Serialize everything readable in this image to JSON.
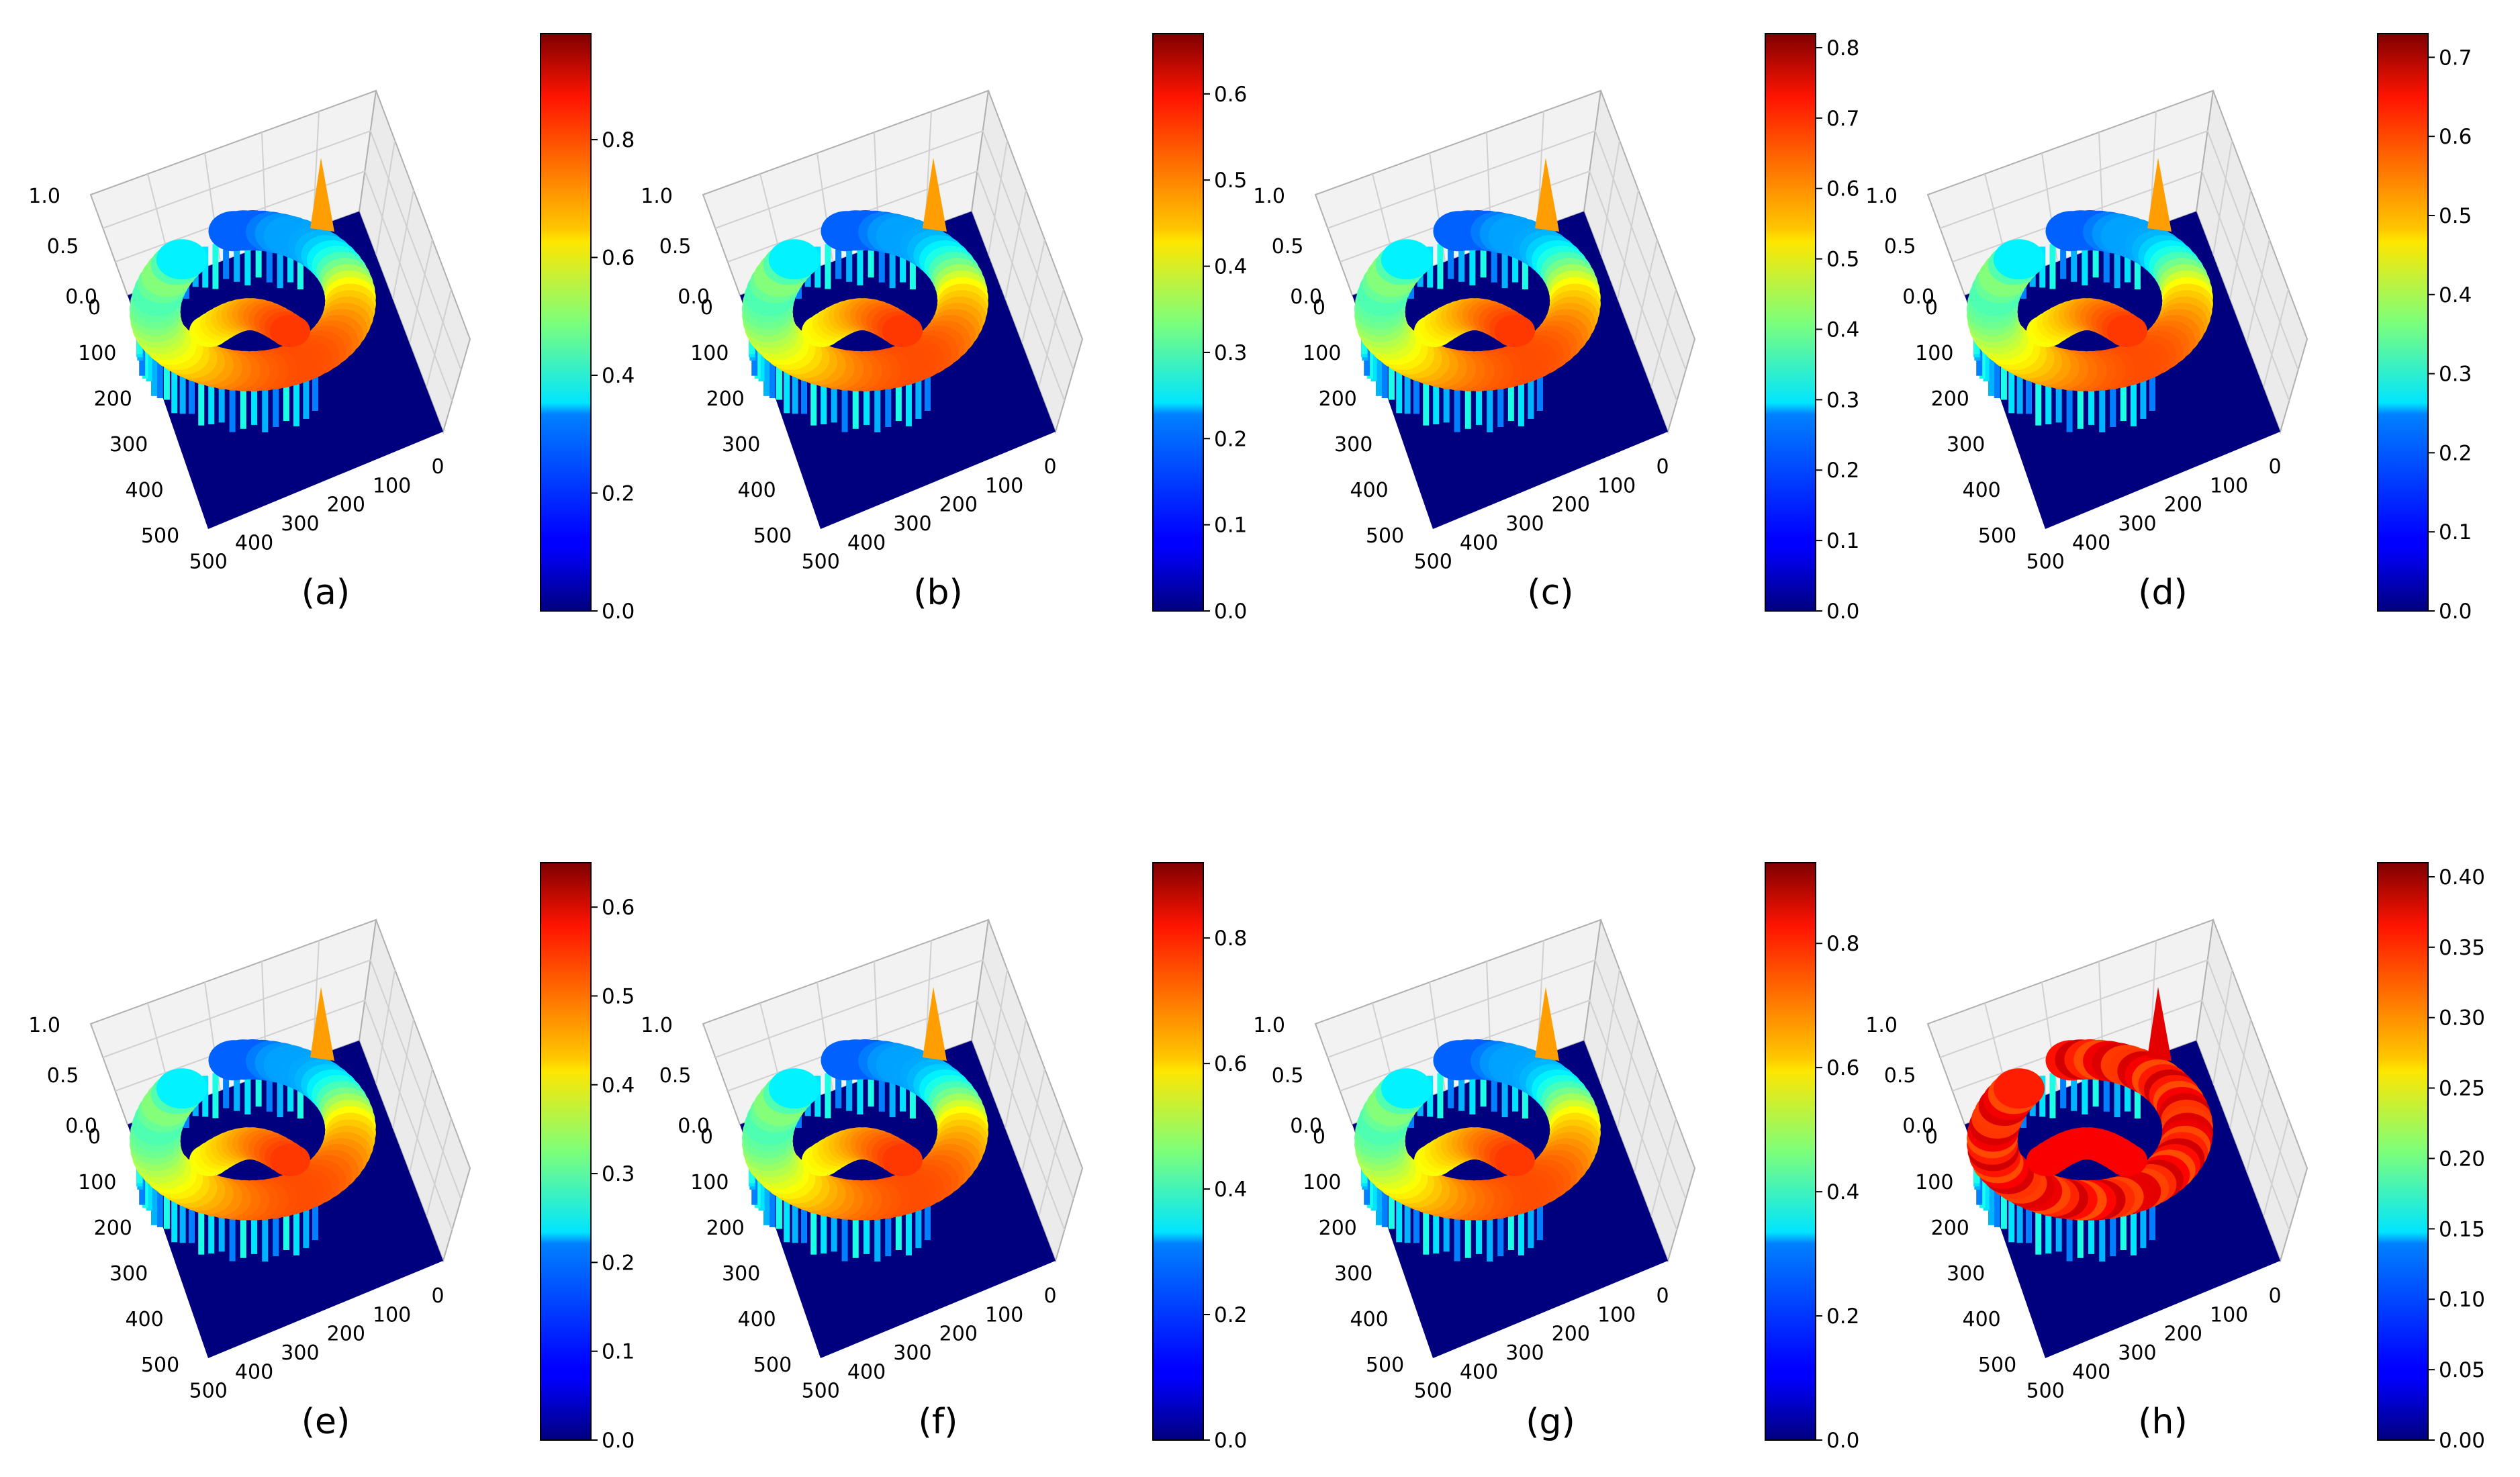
{
  "figure": {
    "background": "#ffffff",
    "axis_color": "#b0b0b0",
    "base_color": "#00007f",
    "colormap": "jet"
  },
  "chart_data": [
    {
      "type": "heatmap",
      "surface": "3d",
      "label": "(a)",
      "zlim": [
        0,
        1
      ],
      "z_ticks": [
        "0.0",
        "0.5",
        "1.0"
      ],
      "x_ticks": [
        "0",
        "100",
        "200",
        "300",
        "400",
        "500"
      ],
      "y_ticks": [
        "0",
        "100",
        "200",
        "300",
        "400",
        "500"
      ],
      "colorbar": {
        "vmin": 0.0,
        "vmax": 0.98,
        "ticks": [
          "0.0",
          "0.2",
          "0.4",
          "0.6",
          "0.8"
        ]
      },
      "style": "normal"
    },
    {
      "type": "heatmap",
      "surface": "3d",
      "label": "(b)",
      "zlim": [
        0,
        1
      ],
      "z_ticks": [
        "0.0",
        "0.5",
        "1.0"
      ],
      "x_ticks": [
        "0",
        "100",
        "200",
        "300",
        "400",
        "500"
      ],
      "y_ticks": [
        "0",
        "100",
        "200",
        "300",
        "400",
        "500"
      ],
      "colorbar": {
        "vmin": 0.0,
        "vmax": 0.67,
        "ticks": [
          "0.0",
          "0.1",
          "0.2",
          "0.3",
          "0.4",
          "0.5",
          "0.6"
        ]
      },
      "style": "normal"
    },
    {
      "type": "heatmap",
      "surface": "3d",
      "label": "(c)",
      "zlim": [
        0,
        1
      ],
      "z_ticks": [
        "0.0",
        "0.5",
        "1.0"
      ],
      "x_ticks": [
        "0",
        "100",
        "200",
        "300",
        "400",
        "500"
      ],
      "y_ticks": [
        "0",
        "100",
        "200",
        "300",
        "400",
        "500"
      ],
      "colorbar": {
        "vmin": 0.0,
        "vmax": 0.82,
        "ticks": [
          "0.0",
          "0.1",
          "0.2",
          "0.3",
          "0.4",
          "0.5",
          "0.6",
          "0.7",
          "0.8"
        ]
      },
      "style": "normal"
    },
    {
      "type": "heatmap",
      "surface": "3d",
      "label": "(d)",
      "zlim": [
        0,
        1
      ],
      "z_ticks": [
        "0.0",
        "0.5",
        "1.0"
      ],
      "x_ticks": [
        "0",
        "100",
        "200",
        "300",
        "400",
        "500"
      ],
      "y_ticks": [
        "0",
        "100",
        "200",
        "300",
        "400",
        "500"
      ],
      "colorbar": {
        "vmin": 0.0,
        "vmax": 0.73,
        "ticks": [
          "0.0",
          "0.1",
          "0.2",
          "0.3",
          "0.4",
          "0.5",
          "0.6",
          "0.7"
        ]
      },
      "style": "normal"
    },
    {
      "type": "heatmap",
      "surface": "3d",
      "label": "(e)",
      "zlim": [
        0,
        1
      ],
      "z_ticks": [
        "0.0",
        "0.5",
        "1.0"
      ],
      "x_ticks": [
        "0",
        "100",
        "200",
        "300",
        "400",
        "500"
      ],
      "y_ticks": [
        "0",
        "100",
        "200",
        "300",
        "400",
        "500"
      ],
      "colorbar": {
        "vmin": 0.0,
        "vmax": 0.65,
        "ticks": [
          "0.0",
          "0.1",
          "0.2",
          "0.3",
          "0.4",
          "0.5",
          "0.6"
        ]
      },
      "style": "normal"
    },
    {
      "type": "heatmap",
      "surface": "3d",
      "label": "(f)",
      "zlim": [
        0,
        1
      ],
      "z_ticks": [
        "0.0",
        "0.5",
        "1.0"
      ],
      "x_ticks": [
        "0",
        "100",
        "200",
        "300",
        "400",
        "500"
      ],
      "y_ticks": [
        "0",
        "100",
        "200",
        "300",
        "400",
        "500"
      ],
      "colorbar": {
        "vmin": 0.0,
        "vmax": 0.92,
        "ticks": [
          "0.0",
          "0.2",
          "0.4",
          "0.6",
          "0.8"
        ]
      },
      "style": "normal"
    },
    {
      "type": "heatmap",
      "surface": "3d",
      "label": "(g)",
      "zlim": [
        0,
        1
      ],
      "z_ticks": [
        "0.0",
        "0.5",
        "1.0"
      ],
      "x_ticks": [
        "0",
        "100",
        "200",
        "300",
        "400",
        "500"
      ],
      "y_ticks": [
        "0",
        "100",
        "200",
        "300",
        "400",
        "500"
      ],
      "colorbar": {
        "vmin": 0.0,
        "vmax": 0.93,
        "ticks": [
          "0.0",
          "0.2",
          "0.4",
          "0.6",
          "0.8"
        ]
      },
      "style": "normal"
    },
    {
      "type": "heatmap",
      "surface": "3d",
      "label": "(h)",
      "zlim": [
        0,
        1
      ],
      "z_ticks": [
        "0.0",
        "0.5",
        "1.0"
      ],
      "x_ticks": [
        "0",
        "100",
        "200",
        "300",
        "400",
        "500"
      ],
      "y_ticks": [
        "0",
        "100",
        "200",
        "300",
        "400",
        "500"
      ],
      "colorbar": {
        "vmin": 0.0,
        "vmax": 0.41,
        "ticks": [
          "0.00",
          "0.05",
          "0.10",
          "0.15",
          "0.20",
          "0.25",
          "0.30",
          "0.35",
          "0.40"
        ]
      },
      "style": "saturated"
    }
  ]
}
